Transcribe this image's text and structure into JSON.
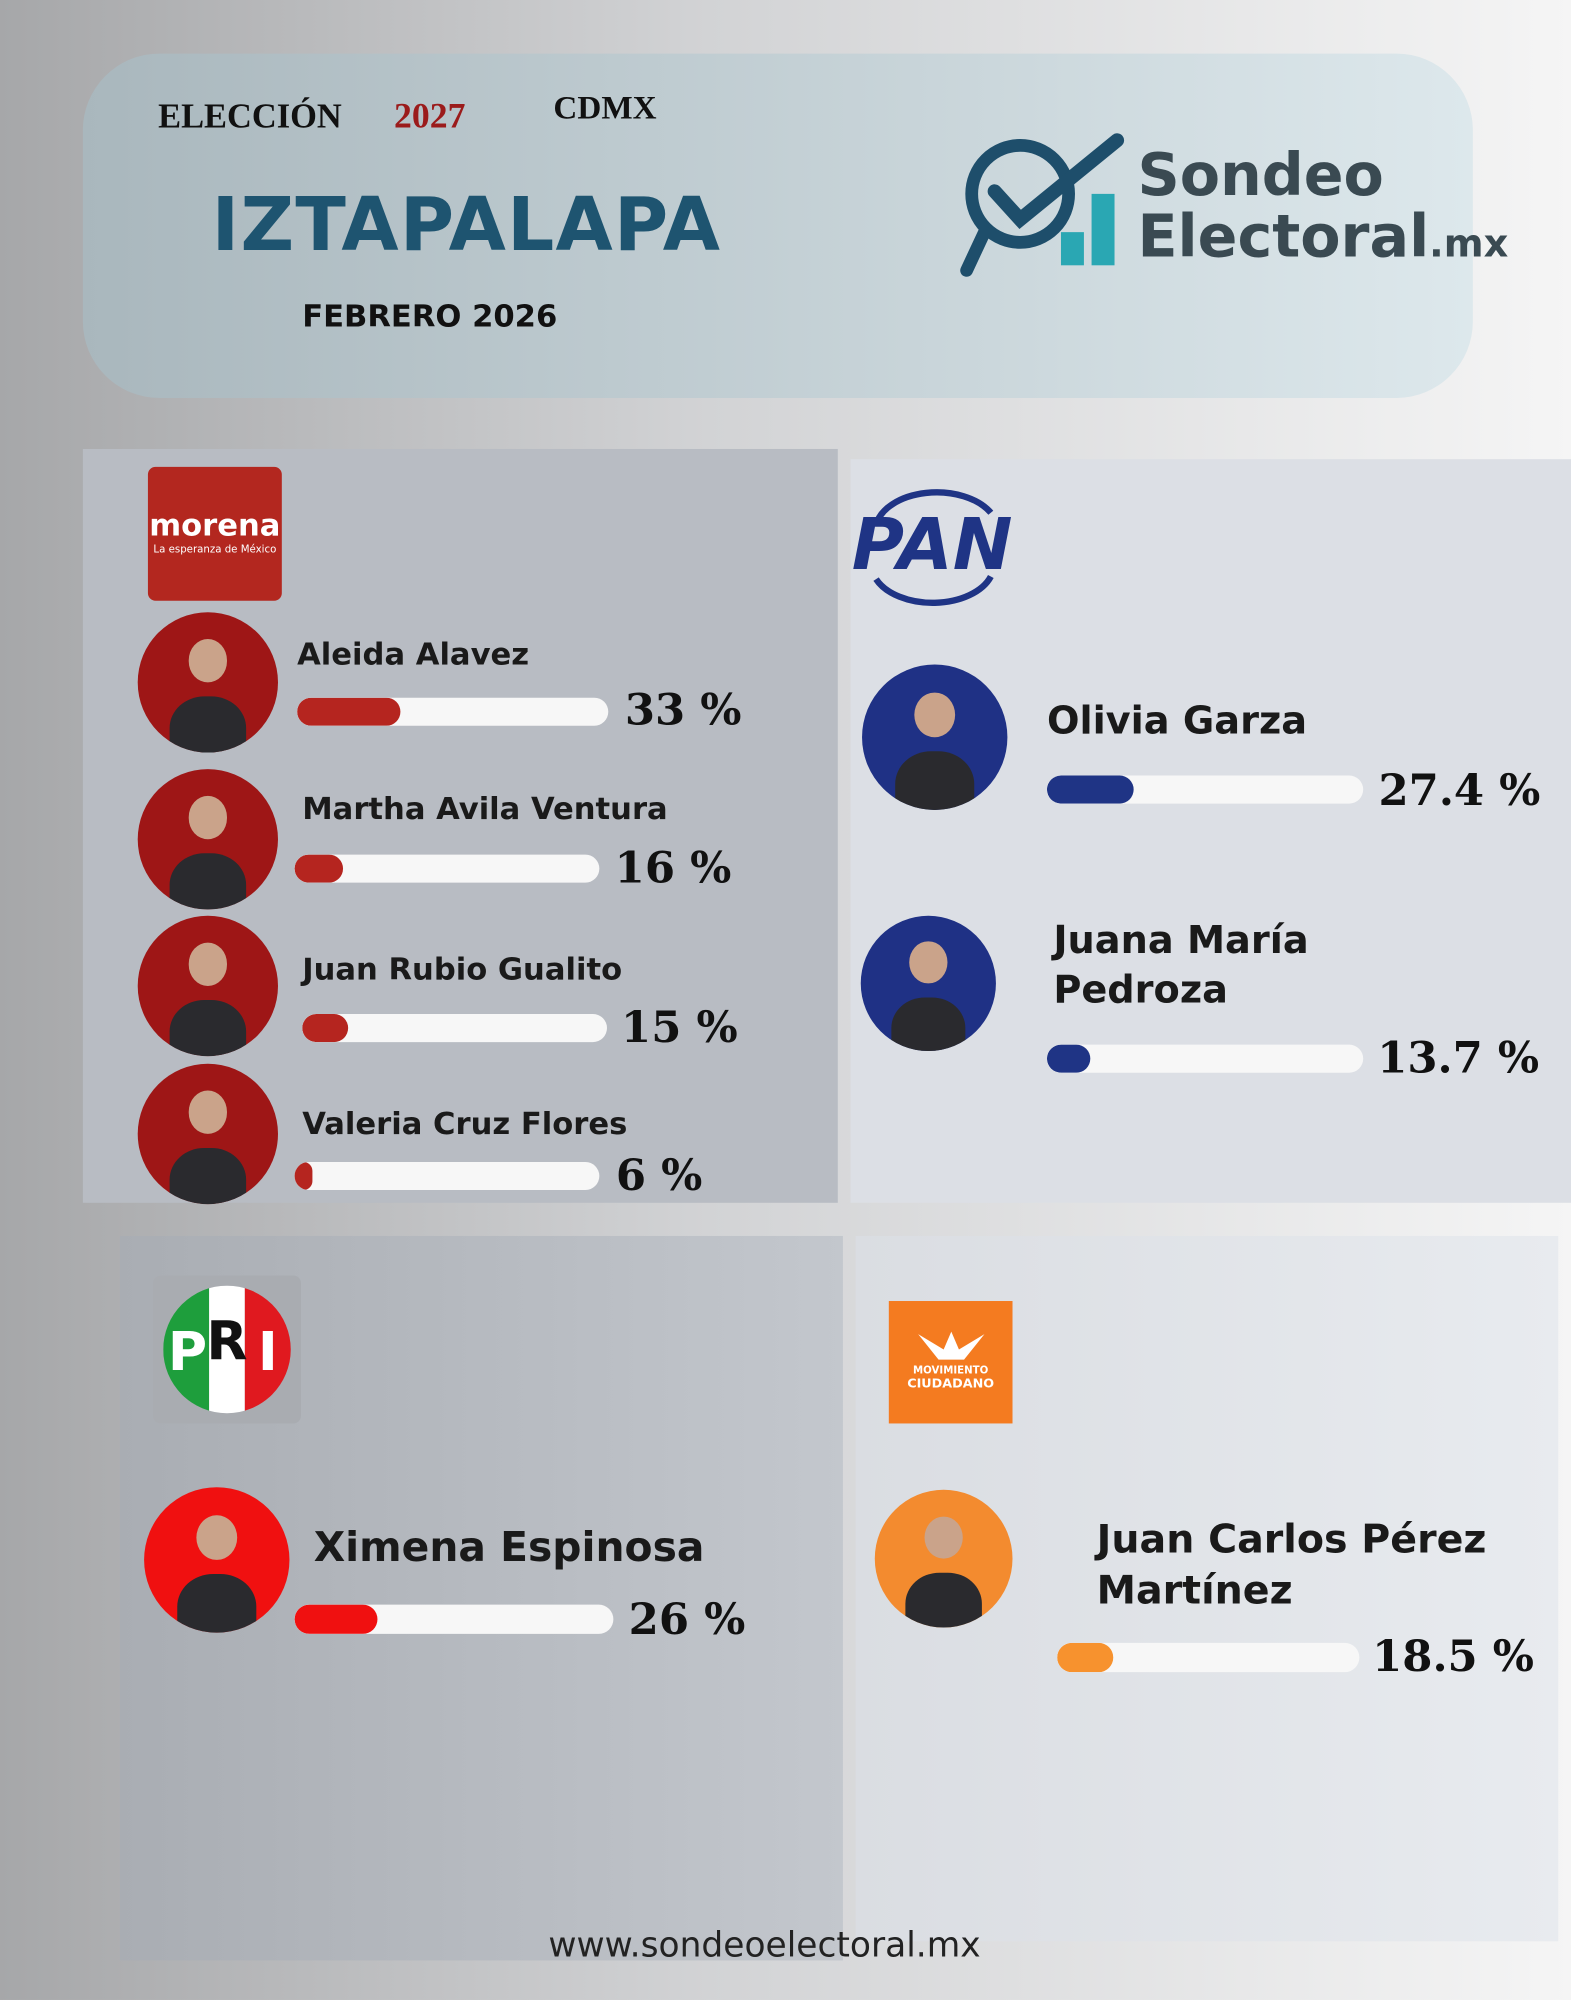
{
  "header": {
    "election": "ELECCIÓN",
    "year": "2027",
    "region": "CDMX",
    "title": "IZTAPALAPA",
    "date": "FEBRERO 2026",
    "brand": {
      "name": "Sondeo",
      "name2": "Electoral",
      "suffix": ".mx"
    }
  },
  "parties": [
    {
      "logo": {
        "name": "morena",
        "tagline": "La esperanza de México"
      },
      "color": "#b5251f",
      "candidates": [
        {
          "name": "Aleida Alavez",
          "value": 33,
          "value_label": "33 %"
        },
        {
          "name": "Martha Avila Ventura",
          "value": 16,
          "value_label": "16 %"
        },
        {
          "name": "Juan Rubio Gualito",
          "value": 15,
          "value_label": "15 %"
        },
        {
          "name": "Valeria Cruz Flores",
          "value": 6,
          "value_label": "6 %"
        }
      ]
    },
    {
      "logo": {
        "name": "PAN"
      },
      "color": "#1f3485",
      "candidates": [
        {
          "name": "Olivia Garza",
          "value": 27.4,
          "value_label": "27.4 %"
        },
        {
          "name": "Juana María Pedroza",
          "value": 13.7,
          "value_label": "13.7 %"
        }
      ]
    },
    {
      "logo": {
        "letters": [
          "P",
          "R",
          "I"
        ]
      },
      "color": "#f01010",
      "candidates": [
        {
          "name": "Ximena Espinosa",
          "value": 26,
          "value_label": "26 %"
        }
      ]
    },
    {
      "logo": {
        "line1": "MOVIMIENTO",
        "line2": "CIUDADANO"
      },
      "color": "#f7922e",
      "candidates": [
        {
          "name": "Juan Carlos Pérez Martínez",
          "value": 18.5,
          "value_label": "18.5 %"
        }
      ]
    }
  ],
  "footer": "www.sondeoelectoral.mx"
}
